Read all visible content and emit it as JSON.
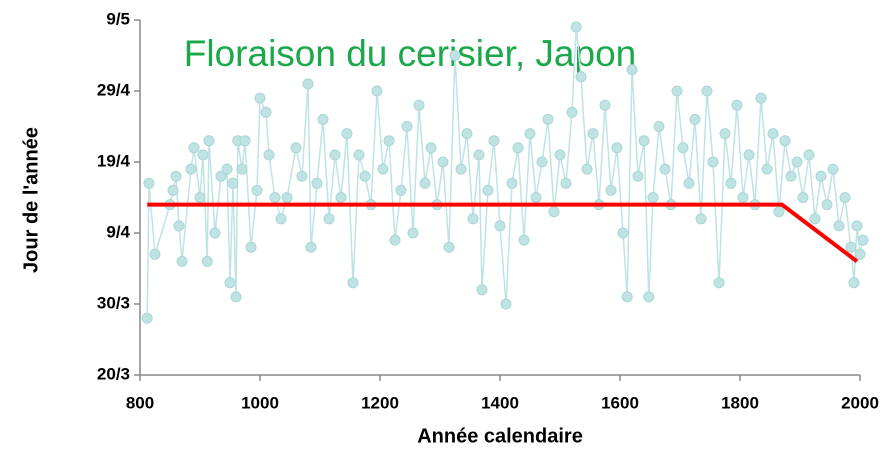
{
  "chart_data": {
    "type": "line",
    "title": "Floraison du cerisier, Japon",
    "xlabel": "Année calendaire",
    "ylabel": "Jour de l'année",
    "xlim": [
      800,
      2000
    ],
    "ylim": [
      79,
      129
    ],
    "xticks": [
      800,
      1000,
      1200,
      1400,
      1600,
      1800,
      2000
    ],
    "yticks": [
      {
        "value": 79,
        "label": "20/3"
      },
      {
        "value": 89,
        "label": "30/3"
      },
      {
        "value": 99,
        "label": "9/4"
      },
      {
        "value": 109,
        "label": "19/4"
      },
      {
        "value": 119,
        "label": "29/4"
      },
      {
        "value": 129,
        "label": "9/5"
      }
    ],
    "series": [
      {
        "color": "#bfe3e3",
        "markers": true,
        "x": [
          812,
          815,
          825,
          850,
          855,
          860,
          865,
          870,
          885,
          890,
          900,
          905,
          912,
          915,
          925,
          935,
          945,
          950,
          955,
          960,
          963,
          970,
          975,
          985,
          995,
          1000,
          1010,
          1015,
          1025,
          1035,
          1045,
          1060,
          1070,
          1080,
          1085,
          1095,
          1105,
          1115,
          1125,
          1135,
          1145,
          1155,
          1165,
          1175,
          1185,
          1195,
          1205,
          1215,
          1225,
          1235,
          1245,
          1255,
          1265,
          1275,
          1285,
          1295,
          1305,
          1315,
          1325,
          1335,
          1345,
          1355,
          1365,
          1370,
          1380,
          1390,
          1400,
          1410,
          1420,
          1430,
          1440,
          1450,
          1460,
          1470,
          1480,
          1490,
          1500,
          1510,
          1520,
          1527,
          1535,
          1545,
          1555,
          1565,
          1575,
          1585,
          1595,
          1605,
          1612,
          1620,
          1630,
          1640,
          1648,
          1655,
          1665,
          1675,
          1685,
          1695,
          1705,
          1715,
          1725,
          1735,
          1745,
          1755,
          1765,
          1775,
          1785,
          1795,
          1805,
          1815,
          1825,
          1835,
          1845,
          1855,
          1865,
          1875,
          1885,
          1895,
          1905,
          1915,
          1925,
          1935,
          1945,
          1955,
          1965,
          1975,
          1985,
          1990,
          1995,
          2000,
          2005
        ],
        "values": [
          87,
          106,
          96,
          103,
          105,
          107,
          100,
          95,
          108,
          111,
          104,
          110,
          95,
          112,
          99,
          107,
          108,
          92,
          106,
          90,
          112,
          108,
          112,
          97,
          105,
          118,
          116,
          110,
          104,
          101,
          104,
          111,
          107,
          120,
          97,
          106,
          115,
          101,
          110,
          104,
          113,
          92,
          110,
          107,
          103,
          119,
          108,
          112,
          98,
          105,
          114,
          99,
          117,
          106,
          111,
          103,
          109,
          97,
          124,
          108,
          113,
          101,
          110,
          91,
          105,
          112,
          100,
          89,
          106,
          111,
          98,
          113,
          104,
          109,
          115,
          102,
          110,
          106,
          116,
          128,
          121,
          108,
          113,
          103,
          117,
          105,
          111,
          99,
          90,
          122,
          107,
          112,
          90,
          104,
          114,
          108,
          103,
          119,
          111,
          106,
          115,
          101,
          119,
          109,
          92,
          113,
          106,
          117,
          104,
          110,
          103,
          118,
          108,
          113,
          102,
          112,
          107,
          109,
          104,
          110,
          101,
          107,
          103,
          108,
          100,
          104,
          97,
          92,
          100,
          96,
          98
        ]
      },
      {
        "color": "#ff0000",
        "markers": false,
        "x": [
          812,
          1870,
          1995
        ],
        "values": [
          103,
          103,
          95
        ]
      }
    ]
  }
}
